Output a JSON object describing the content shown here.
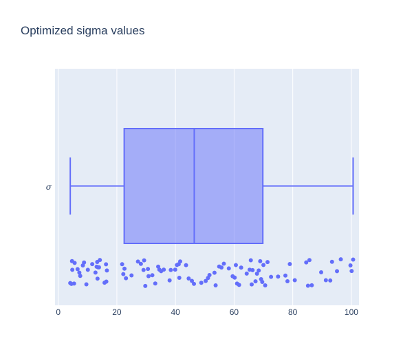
{
  "chart_data": {
    "type": "box",
    "orientation": "horizontal",
    "title": "Optimized sigma values",
    "category": "σ",
    "xlim": [
      -1.1,
      102.6
    ],
    "xticks": [
      0,
      20,
      40,
      60,
      80,
      100
    ],
    "box": {
      "min": 4.1,
      "q1": 22.5,
      "median": 46.4,
      "q3": 69.8,
      "max": 100.6
    },
    "points": [
      4.1,
      4.5,
      4.7,
      4.8,
      5.4,
      5.6,
      6.6,
      7.2,
      7.5,
      8.4,
      8.8,
      9.6,
      10.1,
      11.6,
      12.7,
      13.1,
      13.3,
      13.4,
      13.6,
      13.9,
      14.2,
      15.8,
      16.3,
      16.4,
      16.6,
      21.8,
      22.2,
      22.6,
      23.1,
      25.0,
      27.2,
      28.2,
      29.1,
      29.3,
      29.7,
      30.6,
      30.8,
      32.1,
      33.1,
      34.1,
      34.5,
      35.1,
      36.0,
      38.0,
      38.4,
      39.9,
      40.5,
      41.1,
      41.3,
      41.6,
      43.6,
      44.5,
      45.6,
      46.3,
      48.8,
      50.3,
      51.1,
      51.6,
      53.3,
      53.7,
      54.9,
      55.7,
      56.5,
      58.2,
      59.5,
      60.2,
      60.6,
      61.0,
      61.7,
      62.4,
      64.3,
      65.3,
      65.7,
      66.0,
      66.3,
      67.3,
      67.8,
      68.4,
      68.9,
      69.2,
      69.6,
      70.0,
      70.6,
      71.4,
      72.6,
      75.0,
      77.5,
      78.2,
      79.0,
      80.7,
      84.6,
      85.2,
      85.7,
      86.5,
      89.7,
      91.3,
      92.8,
      93.4,
      95.1,
      96.4,
      99.7,
      100.1,
      100.6
    ]
  },
  "colors": {
    "box_line": "#636efa",
    "box_fill": "rgba(99,110,250,0.5)",
    "plot_bg": "#e5ecf6",
    "grid": "#ffffff",
    "text": "#2a3f5f"
  }
}
